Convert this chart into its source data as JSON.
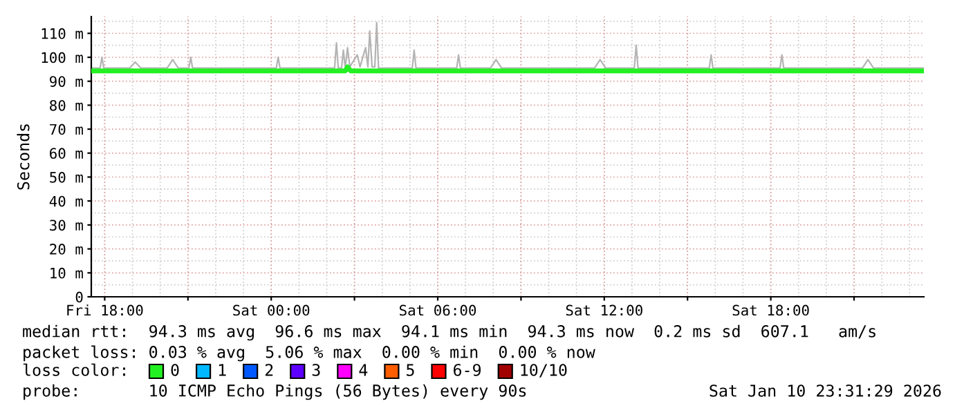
{
  "chart_data": {
    "type": "line",
    "ylabel": "Seconds",
    "xlim": [
      "2026-01-09T17:31",
      "2026-01-10T23:31"
    ],
    "xticks": [
      {
        "value": "2026-01-09T18:00",
        "label": "Fri 18:00"
      },
      {
        "value": "2026-01-09T21:00",
        "label": null
      },
      {
        "value": "2026-01-10T00:00",
        "label": "Sat 00:00"
      },
      {
        "value": "2026-01-10T03:00",
        "label": null
      },
      {
        "value": "2026-01-10T06:00",
        "label": "Sat 06:00"
      },
      {
        "value": "2026-01-10T09:00",
        "label": null
      },
      {
        "value": "2026-01-10T12:00",
        "label": "Sat 12:00"
      },
      {
        "value": "2026-01-10T15:00",
        "label": null
      },
      {
        "value": "2026-01-10T18:00",
        "label": "Sat 18:00"
      },
      {
        "value": "2026-01-10T21:00",
        "label": null
      }
    ],
    "ylim": [
      0,
      117
    ],
    "yticks": [
      {
        "value": 0,
        "label": "0"
      },
      {
        "value": 10,
        "label": "10 m"
      },
      {
        "value": 20,
        "label": "20 m"
      },
      {
        "value": 30,
        "label": "30 m"
      },
      {
        "value": 40,
        "label": "40 m"
      },
      {
        "value": 50,
        "label": "50 m"
      },
      {
        "value": 60,
        "label": "60 m"
      },
      {
        "value": 70,
        "label": "70 m"
      },
      {
        "value": 80,
        "label": "80 m"
      },
      {
        "value": 90,
        "label": "90 m"
      },
      {
        "value": 100,
        "label": "100 m"
      },
      {
        "value": 110,
        "label": "110 m"
      }
    ],
    "grid": true,
    "legend": "bottom",
    "legend_title": "loss color:",
    "marker": "none",
    "line_style": "solid",
    "series": [
      {
        "color": "#b4b4b4",
        "x": [
          "2026-01-09T17:31",
          "2026-01-09T17:50",
          "2026-01-09T17:54",
          "2026-01-09T17:58",
          "2026-01-09T18:54",
          "2026-01-09T19:06",
          "2026-01-09T19:18",
          "2026-01-09T20:15",
          "2026-01-09T20:27",
          "2026-01-09T20:39",
          "2026-01-09T21:02",
          "2026-01-09T21:06",
          "2026-01-09T21:10",
          "2026-01-10T00:11",
          "2026-01-10T00:15",
          "2026-01-10T00:19",
          "2026-01-10T02:17",
          "2026-01-10T02:21",
          "2026-01-10T02:25",
          "2026-01-10T02:32",
          "2026-01-10T02:36",
          "2026-01-10T02:40",
          "2026-01-10T02:45",
          "2026-01-10T02:50",
          "2026-01-10T03:06",
          "2026-01-10T03:12",
          "2026-01-10T03:24",
          "2026-01-10T03:29",
          "2026-01-10T03:33",
          "2026-01-10T03:38",
          "2026-01-10T03:44",
          "2026-01-10T03:48",
          "2026-01-10T03:52",
          "2026-01-10T05:05",
          "2026-01-10T05:09",
          "2026-01-10T05:13",
          "2026-01-10T06:41",
          "2026-01-10T06:45",
          "2026-01-10T06:49",
          "2026-01-10T07:54",
          "2026-01-10T08:06",
          "2026-01-10T08:18",
          "2026-01-10T11:39",
          "2026-01-10T11:51",
          "2026-01-10T12:03",
          "2026-01-10T13:05",
          "2026-01-10T13:09",
          "2026-01-10T13:13",
          "2026-01-10T15:47",
          "2026-01-10T15:51",
          "2026-01-10T15:55",
          "2026-01-10T18:20",
          "2026-01-10T18:24",
          "2026-01-10T18:28",
          "2026-01-10T21:18",
          "2026-01-10T21:30",
          "2026-01-10T21:42",
          "2026-01-10T23:31"
        ],
        "values": [
          95.5,
          95.5,
          100,
          95.5,
          95.5,
          98,
          95.5,
          95.5,
          99,
          95.5,
          95.5,
          100,
          95.5,
          95.5,
          100,
          95.5,
          95.5,
          106,
          95.5,
          95.5,
          103,
          95.5,
          104,
          96,
          101,
          96,
          104,
          96,
          111,
          96,
          96,
          114.5,
          95.5,
          95.5,
          103,
          95.5,
          95.5,
          101,
          95.5,
          95.5,
          99,
          95.5,
          95.5,
          99,
          95.5,
          95.5,
          105,
          95.5,
          95.5,
          101,
          95.5,
          95.5,
          101,
          95.5,
          95.5,
          99,
          95.5,
          95.5
        ]
      },
      {
        "name": "0",
        "color": "#22f022",
        "x": [
          "2026-01-09T17:31",
          "2026-01-10T02:40",
          "2026-01-10T02:45",
          "2026-01-10T02:52",
          "2026-01-10T23:31"
        ],
        "values": [
          94.3,
          94.3,
          96,
          94.3,
          94.3
        ]
      },
      {
        "name": "1",
        "color": "#00b8ff"
      },
      {
        "name": "2",
        "color": "#0059ff"
      },
      {
        "name": "3",
        "color": "#5e00ff"
      },
      {
        "name": "4",
        "color": "#ff00ff"
      },
      {
        "name": "5",
        "color": "#ff5e00"
      },
      {
        "name": "6-9",
        "color": "#ff0000"
      },
      {
        "name": "10/10",
        "color": "#a10000"
      }
    ],
    "annotations": [
      "median rtt:  94.3 ms avg  96.6 ms max  94.1 ms min  94.3 ms now  0.2 ms sd  607.1   am/s",
      "packet loss: 0.03 % avg  5.06 % max  0.00 % min  0.00 % now",
      "probe:       10 ICMP Echo Pings (56 Bytes) every 90s",
      "Sat Jan 10 23:31:29 2026"
    ]
  }
}
